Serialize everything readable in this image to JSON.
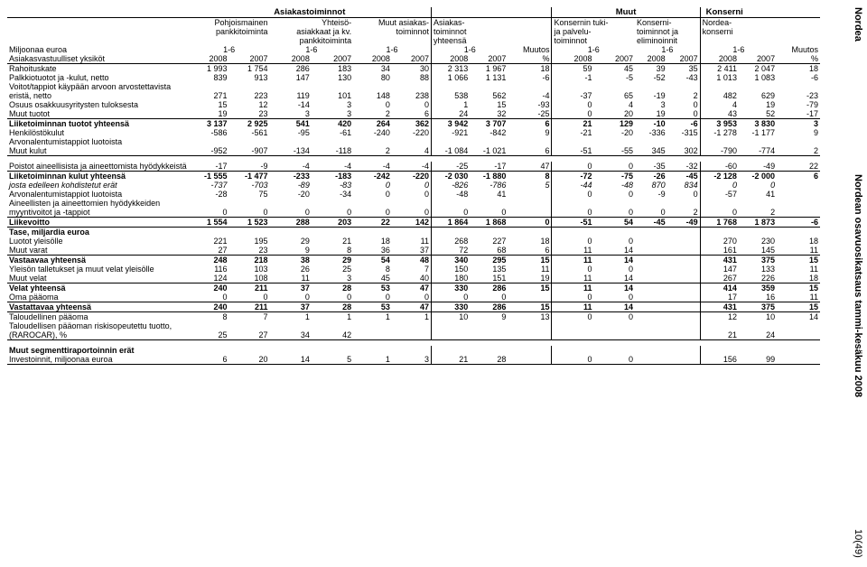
{
  "side": {
    "top": "Nordea",
    "middle": "Nordean osavuosikatsaus tammi-kesäkuu 2008",
    "bottom": "10(49)"
  },
  "groupHeaders": {
    "g1": "Asiakastoiminnot",
    "g2": "Muut",
    "g3": "Konserni"
  },
  "colHeaders": {
    "c1a": "Pohjoismainen",
    "c1b": "pankkitoiminta",
    "c2a": "Yhteisö-",
    "c2b": "asiakkaat ja kv.",
    "c2c": "pankkitoiminta",
    "c3a": "Muut asiakas-",
    "c3b": "toiminnot",
    "c4a": "Asiakas-",
    "c4b": "toiminnot",
    "c4c": "yhteensä",
    "c5a": "Konsernin tuki-",
    "c5b": "ja palvelu-",
    "c5c": "toiminnot",
    "c6a": "Konserni-",
    "c6b": "toiminnot ja",
    "c6c": "eliminoinnit",
    "c7a": "Nordea-",
    "c7b": "konserni",
    "miljoonaa": "Miljoonaa euroa",
    "period": "1-6",
    "muutos": "Muutos",
    "yksikot": "Asiakasvastuulliset yksiköt",
    "y2008": "2008",
    "y2007": "2007",
    "pct": "%"
  },
  "rowLabels": {
    "r1": "Rahoituskate",
    "r2": "Palkkiotuotot ja -kulut, netto",
    "r3a": "Voitot/tappiot käypään arvoon arvostettavista",
    "r3b": "eristä, netto",
    "r4": "Osuus osakkuusyritysten tuloksesta",
    "r5": "Muut tuotot",
    "r6": "Liiketoiminnan tuotot yhteensä",
    "r7": "Henkilöstökulut",
    "r8": "Arvonalentumistappiot luotoista",
    "r9": "Muut kulut",
    "r10": "Poistot aineellisista ja aineettomista hyödykkeistä",
    "r11": "Liiketoiminnan kulut yhteensä",
    "r12": "josta edelleen kohdistetut erät",
    "r12b": "Arvonalentumistappiot luotoista",
    "r13a": "Aineellisten ja aineettomien hyödykkeiden",
    "r13b": "myyntivoitot ja -tappiot",
    "r14": "Liikevoitto",
    "taseHdr": "Tase, miljardia euroa",
    "t1": "Luotot yleisölle",
    "t2": "Muut varat",
    "t3": "Vastaavaa yhteensä",
    "t4": "Yleisön talletukset ja muut velat yleisölle",
    "t5": "Muut velat",
    "t6": "Velat yhteensä",
    "t7": "Oma pääoma",
    "t8": "Vastattavaa yhteensä",
    "t9": "Taloudellinen pääoma",
    "raro1": "Taloudellisen pääoman riskisopeutettu tuotto,",
    "raro2": "(RAROCAR), %",
    "segHdr": "Muut segmenttiraportoinnin erät",
    "seg1": "Investoinnit, miljoonaa euroa"
  },
  "rows": {
    "r1": [
      "1 993",
      "1 754",
      "286",
      "183",
      "34",
      "30",
      "2 313",
      "1 967",
      "18",
      "59",
      "45",
      "39",
      "35",
      "2 411",
      "2 047",
      "18"
    ],
    "r2": [
      "839",
      "913",
      "147",
      "130",
      "80",
      "88",
      "1 066",
      "1 131",
      "-6",
      "-1",
      "-5",
      "-52",
      "-43",
      "1 013",
      "1 083",
      "-6"
    ],
    "r3": [
      "271",
      "223",
      "119",
      "101",
      "148",
      "238",
      "538",
      "562",
      "-4",
      "-37",
      "65",
      "-19",
      "2",
      "482",
      "629",
      "-23"
    ],
    "r4": [
      "15",
      "12",
      "-14",
      "3",
      "0",
      "0",
      "1",
      "15",
      "-93",
      "0",
      "4",
      "3",
      "0",
      "4",
      "19",
      "-79"
    ],
    "r5": [
      "19",
      "23",
      "3",
      "3",
      "2",
      "6",
      "24",
      "32",
      "-25",
      "0",
      "20",
      "19",
      "0",
      "43",
      "52",
      "-17"
    ],
    "r6": [
      "3 137",
      "2 925",
      "541",
      "420",
      "264",
      "362",
      "3 942",
      "3 707",
      "6",
      "21",
      "129",
      "-10",
      "-6",
      "3 953",
      "3 830",
      "3"
    ],
    "r7": [
      "-586",
      "-561",
      "-95",
      "-61",
      "-240",
      "-220",
      "-921",
      "-842",
      "9",
      "-21",
      "-20",
      "-336",
      "-315",
      "-1 278",
      "-1 177",
      "9"
    ],
    "r9": [
      "-952",
      "-907",
      "-134",
      "-118",
      "2",
      "4",
      "-1 084",
      "-1 021",
      "6",
      "-51",
      "-55",
      "345",
      "302",
      "-790",
      "-774",
      "2"
    ],
    "r10": [
      "-17",
      "-9",
      "-4",
      "-4",
      "-4",
      "-4",
      "-25",
      "-17",
      "47",
      "0",
      "0",
      "-35",
      "-32",
      "-60",
      "-49",
      "22"
    ],
    "r11": [
      "-1 555",
      "-1 477",
      "-233",
      "-183",
      "-242",
      "-220",
      "-2 030",
      "-1 880",
      "8",
      "-72",
      "-75",
      "-26",
      "-45",
      "-2 128",
      "-2 000",
      "6"
    ],
    "r12": [
      "-737",
      "-703",
      "-89",
      "-83",
      "0",
      "0",
      "-826",
      "-786",
      "5",
      "-44",
      "-48",
      "870",
      "834",
      "0",
      "0",
      ""
    ],
    "r12b": [
      "-28",
      "75",
      "-20",
      "-34",
      "0",
      "0",
      "-48",
      "41",
      "",
      "0",
      "0",
      "-9",
      "0",
      "-57",
      "41",
      ""
    ],
    "r13": [
      "0",
      "0",
      "0",
      "0",
      "0",
      "0",
      "0",
      "0",
      "",
      "0",
      "0",
      "0",
      "2",
      "0",
      "2",
      ""
    ],
    "r14": [
      "1 554",
      "1 523",
      "288",
      "203",
      "22",
      "142",
      "1 864",
      "1 868",
      "0",
      "-51",
      "54",
      "-45",
      "-49",
      "1 768",
      "1 873",
      "-6"
    ],
    "t1": [
      "221",
      "195",
      "29",
      "21",
      "18",
      "11",
      "268",
      "227",
      "18",
      "0",
      "0",
      "",
      "",
      "270",
      "230",
      "18"
    ],
    "t2": [
      "27",
      "23",
      "9",
      "8",
      "36",
      "37",
      "72",
      "68",
      "6",
      "11",
      "14",
      "",
      "",
      "161",
      "145",
      "11"
    ],
    "t3": [
      "248",
      "218",
      "38",
      "29",
      "54",
      "48",
      "340",
      "295",
      "15",
      "11",
      "14",
      "",
      "",
      "431",
      "375",
      "15"
    ],
    "t4": [
      "116",
      "103",
      "26",
      "25",
      "8",
      "7",
      "150",
      "135",
      "11",
      "0",
      "0",
      "",
      "",
      "147",
      "133",
      "11"
    ],
    "t5": [
      "124",
      "108",
      "11",
      "3",
      "45",
      "40",
      "180",
      "151",
      "19",
      "11",
      "14",
      "",
      "",
      "267",
      "226",
      "18"
    ],
    "t6": [
      "240",
      "211",
      "37",
      "28",
      "53",
      "47",
      "330",
      "286",
      "15",
      "11",
      "14",
      "",
      "",
      "414",
      "359",
      "15"
    ],
    "t7": [
      "0",
      "0",
      "0",
      "0",
      "0",
      "0",
      "0",
      "0",
      "",
      "0",
      "0",
      "",
      "",
      "17",
      "16",
      "11"
    ],
    "t8": [
      "240",
      "211",
      "37",
      "28",
      "53",
      "47",
      "330",
      "286",
      "15",
      "11",
      "14",
      "",
      "",
      "431",
      "375",
      "15"
    ],
    "t9": [
      "8",
      "7",
      "1",
      "1",
      "1",
      "1",
      "10",
      "9",
      "13",
      "0",
      "0",
      "",
      "",
      "12",
      "10",
      "14"
    ],
    "raro": [
      "25",
      "27",
      "34",
      "42",
      "",
      "",
      "",
      "",
      "",
      "",
      "",
      "",
      "",
      "21",
      "24",
      ""
    ],
    "seg1": [
      "6",
      "20",
      "14",
      "5",
      "1",
      "3",
      "21",
      "28",
      "",
      "0",
      "0",
      "",
      "",
      "156",
      "99",
      ""
    ]
  },
  "columnBorders": [
    false,
    false,
    false,
    false,
    false,
    false,
    true,
    false,
    false,
    true,
    false,
    false,
    false,
    true,
    false,
    false
  ]
}
